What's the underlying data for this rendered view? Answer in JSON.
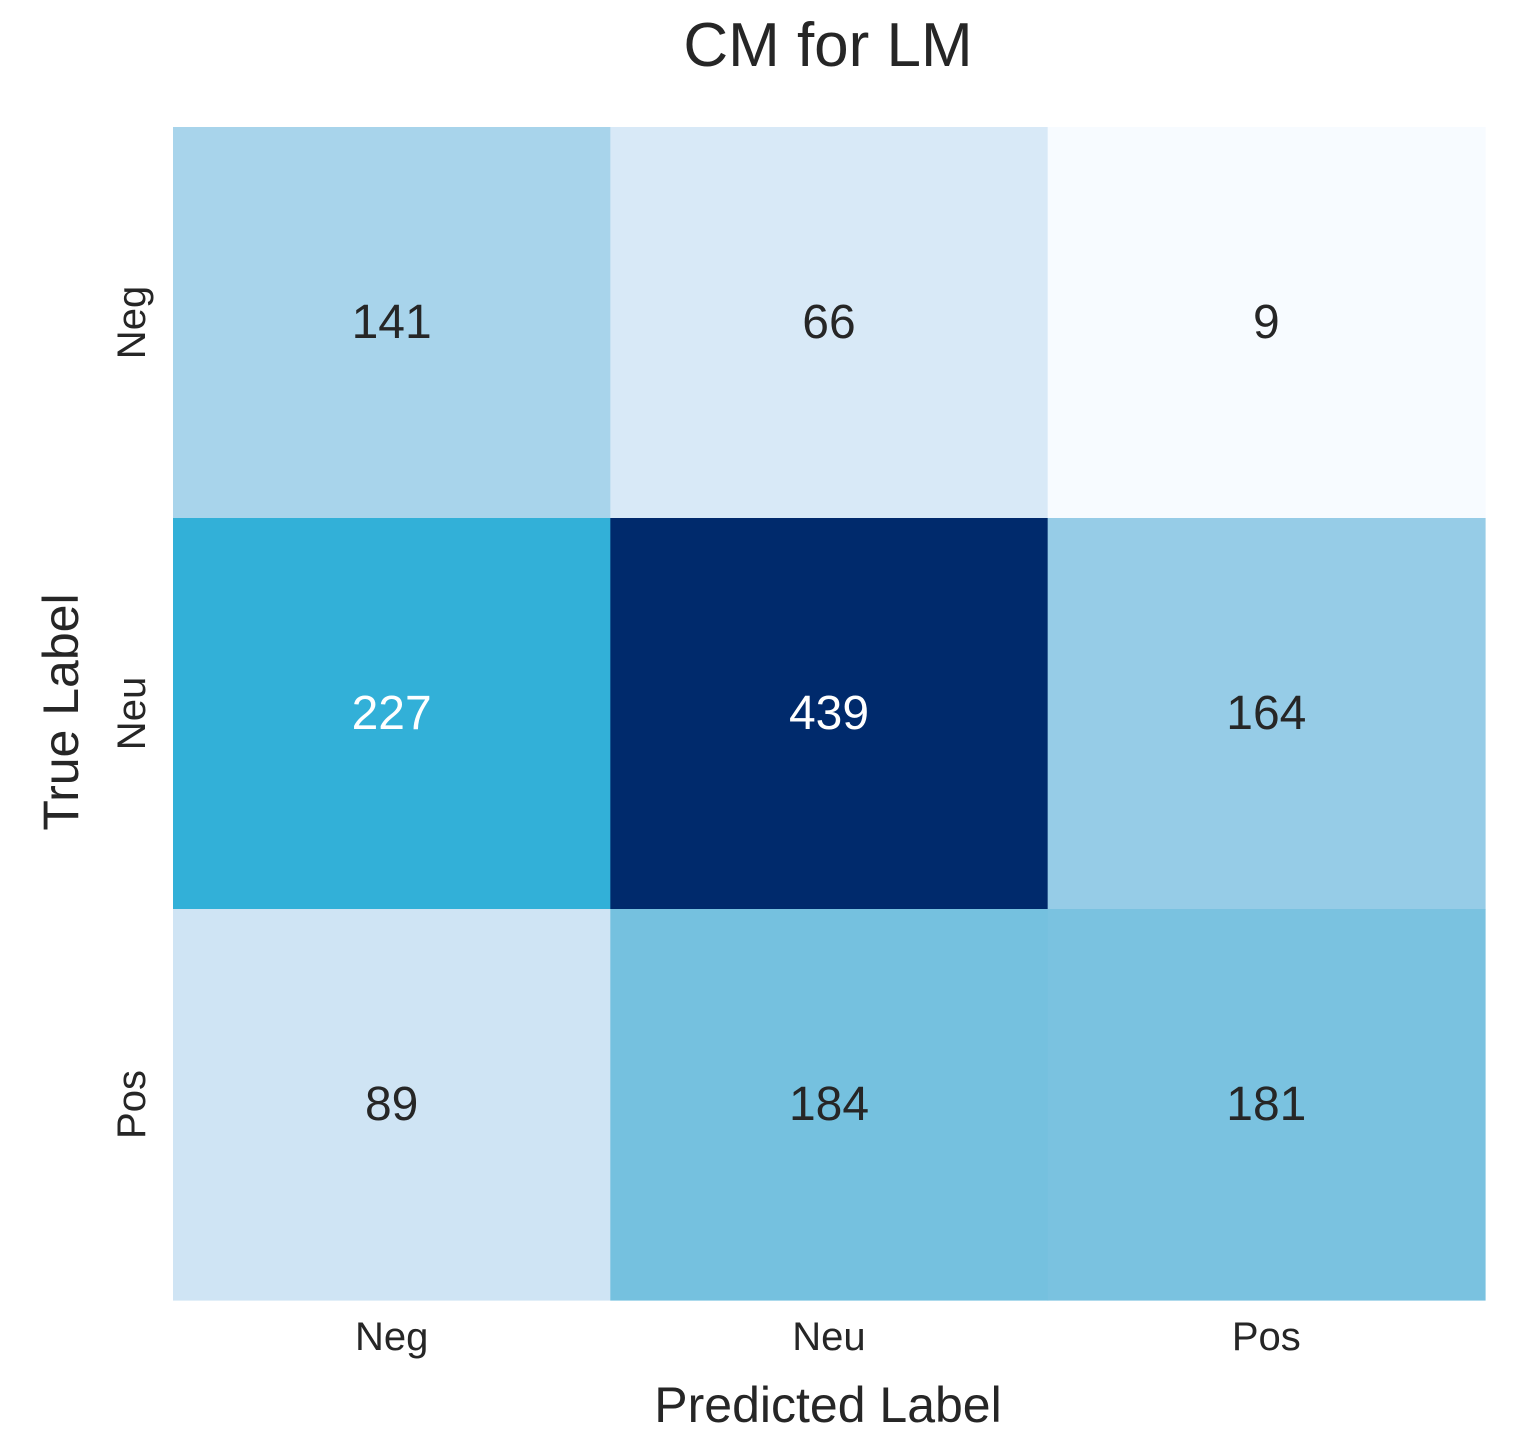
{
  "chart_data": {
    "type": "heatmap",
    "title": "CM for LM",
    "xlabel": "Predicted Label",
    "ylabel": "True Label",
    "x_categories": [
      "Neg",
      "Neu",
      "Pos"
    ],
    "y_categories": [
      "Neg",
      "Neu",
      "Pos"
    ],
    "values": [
      [
        141,
        66,
        9
      ],
      [
        227,
        439,
        164
      ],
      [
        89,
        184,
        181
      ]
    ],
    "colormap": "Blues",
    "color_low": "#f7fbff",
    "color_high": "#08306b",
    "value_range": [
      9,
      439
    ],
    "colorbar": false,
    "annotations": true,
    "text_color_dark": "#262626",
    "text_color_light": "#ffffff"
  }
}
